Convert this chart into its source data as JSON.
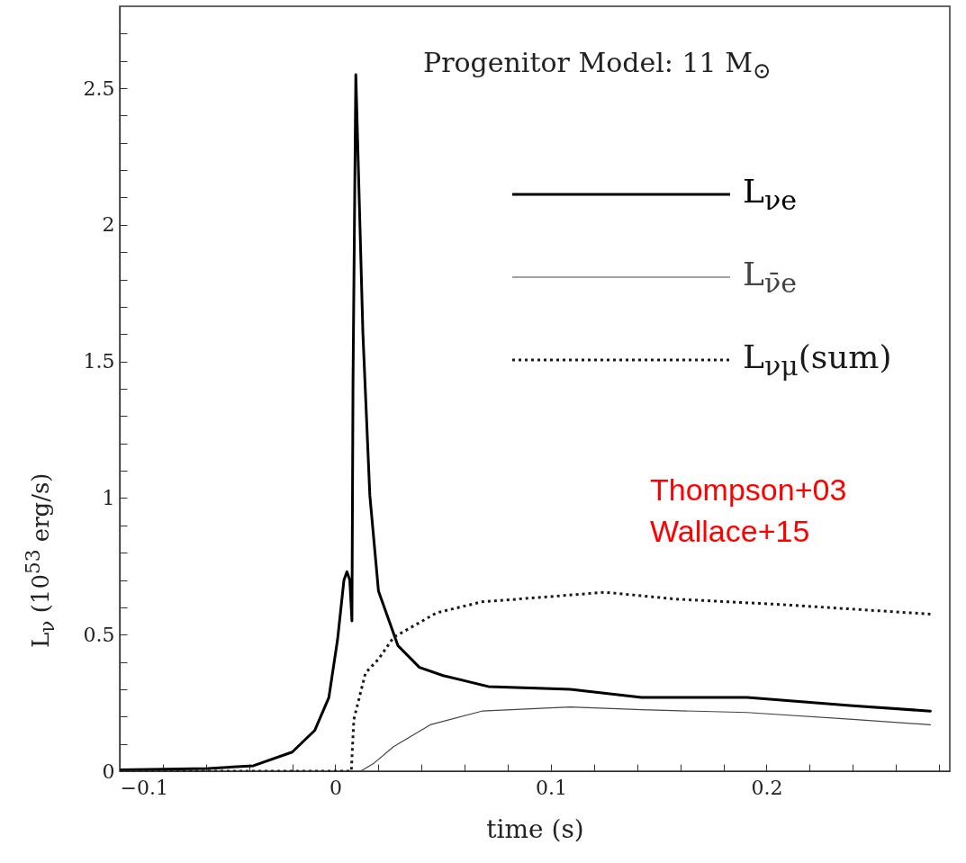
{
  "chart_data": {
    "type": "line",
    "title": "Progenitor Model: 11 M$_{⊙}$",
    "xlabel": "time  (s)",
    "ylabel": "L$_{ν}$ (10$^{53}$ erg/s)",
    "annotations": [
      "Thompson+03",
      "Wallace+15"
    ],
    "xlim": [
      -0.1,
      0.285
    ],
    "ylim": [
      0,
      2.8
    ],
    "xticks": [
      {
        "value": -0.1,
        "label": "−0.1"
      },
      {
        "value": -0.08,
        "label": null
      },
      {
        "value": -0.06,
        "label": null
      },
      {
        "value": -0.04,
        "label": null
      },
      {
        "value": -0.02,
        "label": null
      },
      0,
      {
        "value": 0.02,
        "label": null
      },
      {
        "value": 0.04,
        "label": null
      },
      {
        "value": 0.06,
        "label": null
      },
      {
        "value": 0.08,
        "label": null
      },
      0.1,
      {
        "value": 0.12,
        "label": null
      },
      {
        "value": 0.14,
        "label": null
      },
      {
        "value": 0.16,
        "label": null
      },
      {
        "value": 0.18,
        "label": null
      },
      0.2,
      {
        "value": 0.22,
        "label": null
      },
      {
        "value": 0.24,
        "label": null
      },
      {
        "value": 0.26,
        "label": null
      },
      {
        "value": 0.28,
        "label": null
      }
    ],
    "yticks": [
      0,
      {
        "value": 0.1,
        "label": null
      },
      {
        "value": 0.2,
        "label": null
      },
      {
        "value": 0.3,
        "label": null
      },
      {
        "value": 0.4,
        "label": null
      },
      0.5,
      {
        "value": 0.6,
        "label": null
      },
      {
        "value": 0.7,
        "label": null
      },
      {
        "value": 0.8,
        "label": null
      },
      {
        "value": 0.9,
        "label": null
      },
      1,
      {
        "value": 1.1,
        "label": null
      },
      {
        "value": 1.2,
        "label": null
      },
      {
        "value": 1.3,
        "label": null
      },
      {
        "value": 1.4,
        "label": null
      },
      1.5,
      {
        "value": 1.6,
        "label": null
      },
      {
        "value": 1.7,
        "label": null
      },
      {
        "value": 1.8,
        "label": null
      },
      {
        "value": 1.9,
        "label": null
      },
      2,
      {
        "value": 2.1,
        "label": null
      },
      {
        "value": 2.2,
        "label": null
      },
      {
        "value": 2.3,
        "label": null
      },
      {
        "value": 2.4,
        "label": null
      },
      2.5,
      {
        "value": 2.6,
        "label": null
      },
      {
        "value": 2.7,
        "label": null
      }
    ],
    "grid": false,
    "legend": "top right",
    "series": [
      {
        "name": "L$_{νe}$",
        "color": "#000000",
        "line_style": "solid",
        "x": [
          -0.1,
          -0.059,
          -0.038,
          -0.02,
          -0.0095,
          -0.003,
          0.001,
          0.004,
          0.0054,
          0.0067,
          0.0077,
          0.0082,
          0.0095,
          0.0128,
          0.016,
          0.02,
          0.029,
          0.039,
          0.05,
          0.071,
          0.109,
          0.142,
          0.191,
          0.24,
          0.276
        ],
        "values": [
          0.005,
          0.01,
          0.02,
          0.07,
          0.15,
          0.27,
          0.48,
          0.7,
          0.73,
          0.7,
          0.55,
          1.43,
          2.55,
          1.6,
          1.01,
          0.66,
          0.46,
          0.38,
          0.35,
          0.31,
          0.3,
          0.27,
          0.27,
          0.24,
          0.22
        ]
      },
      {
        "name": "L$_{ν̄e}$",
        "color": "#444444",
        "line_style": "solid",
        "x": [
          -0.1,
          0.0117,
          0.018,
          0.027,
          0.044,
          0.068,
          0.109,
          0.142,
          0.191,
          0.24,
          0.276
        ],
        "values": [
          0,
          0,
          0.03,
          0.09,
          0.17,
          0.22,
          0.235,
          0.225,
          0.215,
          0.19,
          0.17
        ]
      },
      {
        "name": "L$_{νμ}$(sum)",
        "color": "#1a1a1a",
        "line_style": "dotted",
        "x": [
          -0.1,
          0.0074,
          0.0086,
          0.014,
          0.02,
          0.027,
          0.047,
          0.068,
          0.101,
          0.125,
          0.158,
          0.207,
          0.276
        ],
        "values": [
          0,
          0,
          0.19,
          0.36,
          0.41,
          0.49,
          0.58,
          0.62,
          0.64,
          0.655,
          0.63,
          0.61,
          0.575
        ]
      }
    ]
  }
}
